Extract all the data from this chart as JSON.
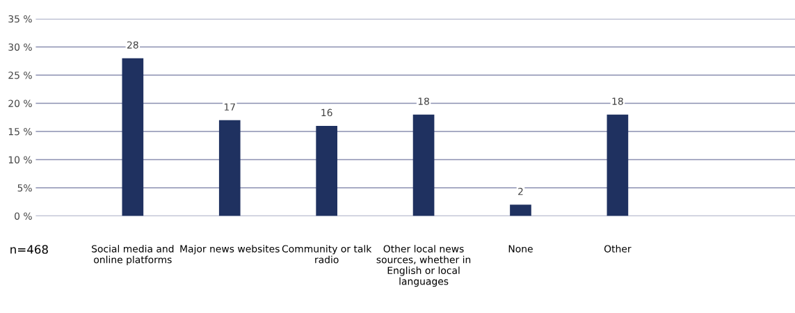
{
  "chart_data": {
    "type": "bar",
    "categories": [
      "Social media and online platforms",
      "Major news websites",
      "Community or talk radio",
      "Other local news sources, whether in English or local languages",
      "None",
      "Other"
    ],
    "values": [
      28,
      17,
      16,
      18,
      2,
      18
    ],
    "color": "#1f3160",
    "ylim": [
      0,
      35
    ],
    "yticks": [
      {
        "value": 0,
        "label": "0 %"
      },
      {
        "value": 5,
        "label": "5%"
      },
      {
        "value": 10,
        "label": "10 %"
      },
      {
        "value": 15,
        "label": "15 %"
      },
      {
        "value": 20,
        "label": "20 %"
      },
      {
        "value": 25,
        "label": "25 %"
      },
      {
        "value": 30,
        "label": "30 %"
      },
      {
        "value": 35,
        "label": "35 %"
      }
    ],
    "grid": "y",
    "data_labels": true,
    "annotations": [
      "n=468"
    ]
  }
}
